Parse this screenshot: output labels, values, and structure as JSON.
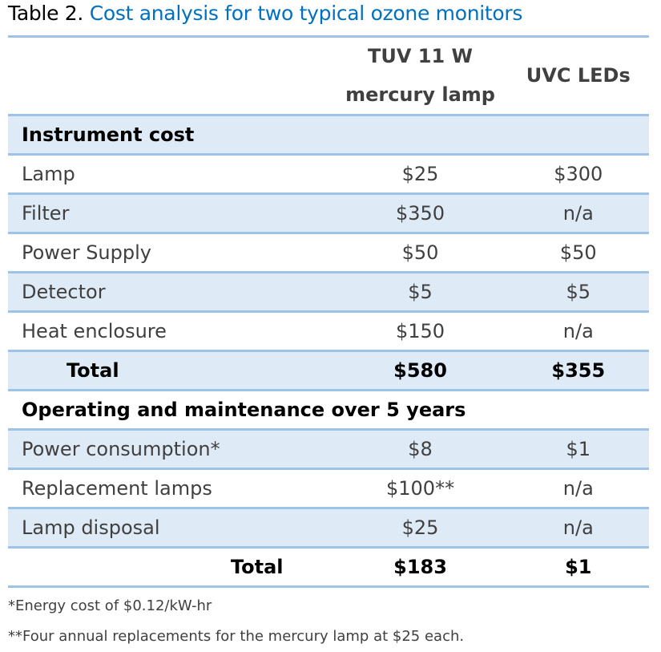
{
  "title": {
    "label": "Table 2.",
    "text": "Cost analysis for two typical ozone monitors"
  },
  "columns": [
    "",
    "TUV 11 W mercury lamp",
    "UVC LEDs"
  ],
  "sections": [
    {
      "title": "Instrument cost",
      "rows": [
        {
          "item": "Lamp",
          "mercury": "$25",
          "led": "$300"
        },
        {
          "item": "Filter",
          "mercury": "$350",
          "led": "n/a"
        },
        {
          "item": "Power Supply",
          "mercury": "$50",
          "led": "$50"
        },
        {
          "item": "Detector",
          "mercury": "$5",
          "led": "$5"
        },
        {
          "item": "Heat enclosure",
          "mercury": "$150",
          "led": "n/a"
        }
      ],
      "total": {
        "label": "Total",
        "mercury": "$580",
        "led": "$355"
      }
    },
    {
      "title": "Operating and maintenance over 5 years",
      "rows": [
        {
          "item": "Power consumption*",
          "mercury": "$8",
          "led": "$1"
        },
        {
          "item": "Replacement lamps",
          "mercury": "$100**",
          "led": "n/a"
        },
        {
          "item": "Lamp disposal",
          "mercury": "$25",
          "led": "n/a"
        }
      ],
      "total": {
        "label": "Total",
        "mercury": "$183",
        "led": "$1"
      }
    }
  ],
  "footnotes": [
    "*Energy cost of $0.12/kW-hr",
    "**Four annual replacements for the mercury lamp at $25 each."
  ],
  "colors": {
    "accent": "#0070c0",
    "rule": "#9dc3e6",
    "shade": "#deeaf6"
  }
}
